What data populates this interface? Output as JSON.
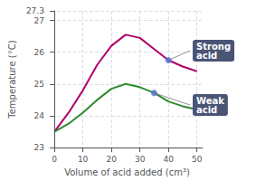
{
  "chart_data": {
    "type": "line",
    "xlabel": "Volume of acid added (cm³)",
    "ylabel": "Temperature (°C)",
    "series": [
      {
        "color": "#b0006a",
        "x": [
          0,
          5,
          10,
          15,
          20,
          25,
          30,
          35,
          40,
          45,
          50
        ],
        "values": [
          23.5,
          24.1,
          24.8,
          25.6,
          26.2,
          26.55,
          26.45,
          26.1,
          25.75,
          25.55,
          25.4
        ]
      },
      {
        "color": "#2e8b2e",
        "x": [
          0,
          5,
          10,
          15,
          20,
          25,
          30,
          35,
          40,
          45,
          50
        ],
        "values": [
          23.5,
          23.75,
          24.1,
          24.5,
          24.85,
          25.0,
          24.9,
          24.72,
          24.45,
          24.3,
          24.2
        ]
      }
    ],
    "annotations": [
      {
        "text": "Strong\nacid",
        "x": 40,
        "y": 25.75,
        "color": "#4a5475"
      },
      {
        "text": "Weak\nacid",
        "x": 35,
        "y": 24.72,
        "color": "#4a5475"
      }
    ],
    "xlim": [
      -1,
      52
    ],
    "ylim": [
      23,
      27.3
    ],
    "xticks": [
      0,
      10,
      20,
      30,
      40,
      50
    ],
    "yticks": [
      23,
      24,
      25,
      26,
      27
    ],
    "grid": true
  }
}
